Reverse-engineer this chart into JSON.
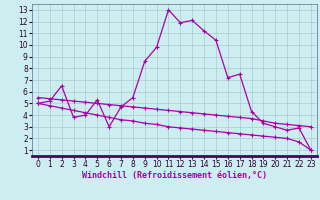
{
  "bg_color": "#cceef0",
  "grid_color": "#aacccc",
  "line_color": "#aa00aa",
  "xlim": [
    -0.5,
    23.5
  ],
  "ylim": [
    0.5,
    13.5
  ],
  "xticks": [
    0,
    1,
    2,
    3,
    4,
    5,
    6,
    7,
    8,
    9,
    10,
    11,
    12,
    13,
    14,
    15,
    16,
    17,
    18,
    19,
    20,
    21,
    22,
    23
  ],
  "yticks": [
    1,
    2,
    3,
    4,
    5,
    6,
    7,
    8,
    9,
    10,
    11,
    12,
    13
  ],
  "xlabel": "Windchill (Refroidissement éolien,°C)",
  "line1_x": [
    0,
    1,
    2,
    3,
    4,
    5,
    6,
    7,
    8,
    9,
    10,
    11,
    12,
    13,
    14,
    15,
    16,
    17,
    18,
    19,
    20,
    21,
    22,
    23
  ],
  "line1_y": [
    5.0,
    5.2,
    6.5,
    3.8,
    4.0,
    5.3,
    3.0,
    4.7,
    5.5,
    8.6,
    9.8,
    13.0,
    11.9,
    12.1,
    11.2,
    10.4,
    7.2,
    7.5,
    4.3,
    3.3,
    3.0,
    2.7,
    2.9,
    1.0
  ],
  "line2_x": [
    0,
    1,
    2,
    3,
    4,
    5,
    6,
    7,
    8,
    9,
    10,
    11,
    12,
    13,
    14,
    15,
    16,
    17,
    18,
    19,
    20,
    21,
    22,
    23
  ],
  "line2_y": [
    5.5,
    5.4,
    5.3,
    5.2,
    5.1,
    5.0,
    4.9,
    4.8,
    4.7,
    4.6,
    4.5,
    4.4,
    4.3,
    4.2,
    4.1,
    4.0,
    3.9,
    3.8,
    3.7,
    3.5,
    3.3,
    3.2,
    3.1,
    3.0
  ],
  "line3_x": [
    0,
    1,
    2,
    3,
    4,
    5,
    6,
    7,
    8,
    9,
    10,
    11,
    12,
    13,
    14,
    15,
    16,
    17,
    18,
    19,
    20,
    21,
    22,
    23
  ],
  "line3_y": [
    5.0,
    4.8,
    4.6,
    4.4,
    4.2,
    4.0,
    3.8,
    3.6,
    3.5,
    3.3,
    3.2,
    3.0,
    2.9,
    2.8,
    2.7,
    2.6,
    2.5,
    2.4,
    2.3,
    2.2,
    2.1,
    2.0,
    1.7,
    1.0
  ],
  "tick_fontsize": 5.5,
  "xlabel_fontsize": 6.0
}
